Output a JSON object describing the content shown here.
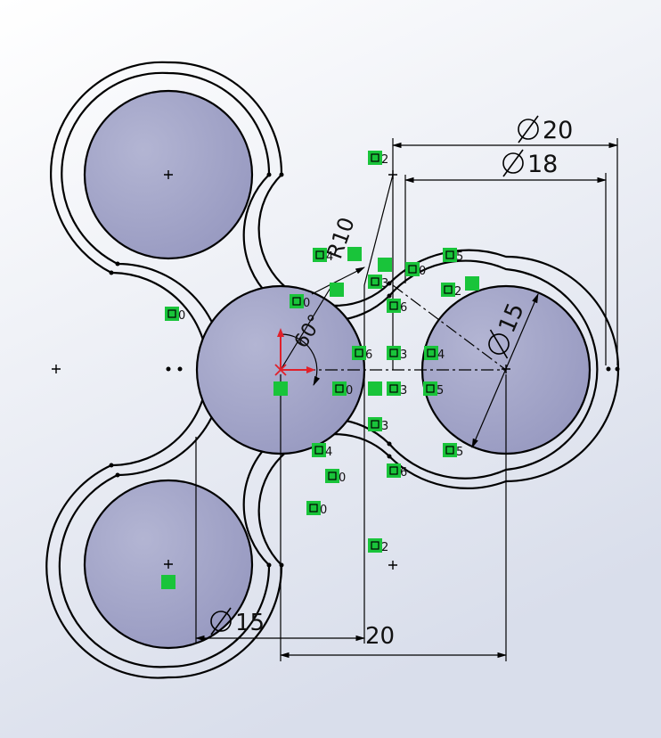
{
  "sketch": {
    "dimensions": {
      "dia20": "20",
      "dia18": "18",
      "dia15_right": "15",
      "dia15_bottom": "15",
      "dist20": "20",
      "radius10": "R10",
      "angle60": "60°"
    },
    "relation_numbers": [
      "2",
      "4",
      "3",
      "0",
      "5",
      "6",
      "0",
      "2",
      "4",
      "6",
      "0",
      "3",
      "5",
      "3",
      "4",
      "3",
      "0",
      "5",
      "6",
      "0",
      "2",
      "0"
    ],
    "colors": {
      "background_top": "#ffffff",
      "background_bottom": "#dfe3ef",
      "hole_fill": "#a4a6c8",
      "line": "#000000",
      "relation_badge": "#19c43a",
      "origin": "#e0202a"
    }
  }
}
